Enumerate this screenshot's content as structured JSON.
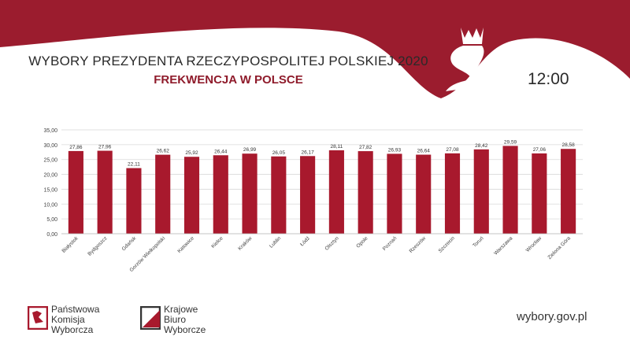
{
  "header": {
    "title": "WYBORY PREZYDENTA RZECZYPOSPOLITEJ POLSKIEJ 2020",
    "subtitle": "FREKWENCJA W POLSCE",
    "time": "12:00"
  },
  "colors": {
    "accent": "#8f1b2b",
    "banner": "#9b1c2e",
    "bar": "#a8192d"
  },
  "chart_data": {
    "type": "bar",
    "categories": [
      "Białystok",
      "Bydgoszcz",
      "Gdańsk",
      "Gorzów Wielkopolski",
      "Katowice",
      "Kielce",
      "Kraków",
      "Lublin",
      "Łódź",
      "Olsztyn",
      "Opole",
      "Poznań",
      "Rzeszów",
      "Szczecin",
      "Toruń",
      "Warszawa",
      "Wrocław",
      "Zielona Góra"
    ],
    "values": [
      27.86,
      27.96,
      22.11,
      26.62,
      25.92,
      26.44,
      26.99,
      26.05,
      26.17,
      28.11,
      27.82,
      26.93,
      26.64,
      27.08,
      28.42,
      29.59,
      27.06,
      28.58
    ],
    "value_labels": [
      "27,86",
      "27,96",
      "22,11",
      "26,62",
      "25,92",
      "26,44",
      "26,99",
      "26,05",
      "26,17",
      "28,11",
      "27,82",
      "26,93",
      "26,64",
      "27,08",
      "28,42",
      "29,59",
      "27,06",
      "28,58"
    ],
    "ylim": [
      0,
      35
    ],
    "yticks": [
      "0,00",
      "5,00",
      "10,00",
      "15,00",
      "20,00",
      "25,00",
      "30,00",
      "35,00"
    ],
    "grid": true,
    "title": "",
    "xlabel": "",
    "ylabel": ""
  },
  "footer": {
    "pkw": [
      "Państwowa",
      "Komisja",
      "Wyborcza"
    ],
    "kbw": [
      "Krajowe",
      "Biuro",
      "Wyborcze"
    ],
    "website": "wybory.gov.pl"
  }
}
